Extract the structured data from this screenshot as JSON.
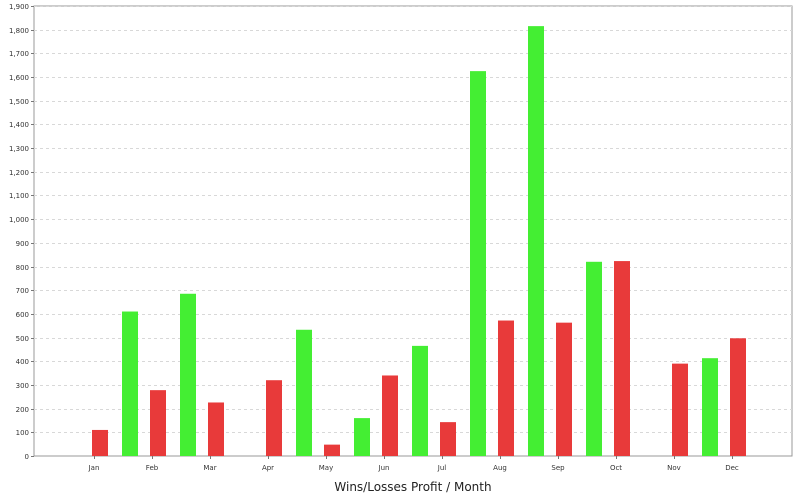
{
  "chart_data": {
    "type": "bar",
    "title": "",
    "xlabel": "Wins/Losses Profit / Month",
    "ylabel": "",
    "categories": [
      "Jan",
      "Feb",
      "Mar",
      "Apr",
      "May",
      "Jun",
      "Jul",
      "Aug",
      "Sep",
      "Oct",
      "Nov",
      "Dec"
    ],
    "series": [
      {
        "name": "",
        "color": "#44ee33",
        "values": [
          0,
          610,
          685,
          0,
          533,
          160,
          465,
          1625,
          1815,
          820,
          0,
          413
        ]
      },
      {
        "name": "",
        "color": "#e83a3a",
        "values": [
          110,
          278,
          226,
          320,
          48,
          340,
          143,
          572,
          563,
          823,
          390,
          497
        ]
      }
    ],
    "ylim": [
      0,
      1900
    ],
    "yticks": [
      0,
      100,
      200,
      300,
      400,
      500,
      600,
      700,
      800,
      900,
      1000,
      1100,
      1200,
      1300,
      1400,
      1500,
      1600,
      1700,
      1800,
      1900
    ],
    "ytick_labels": [
      "0",
      "100",
      "200",
      "300",
      "400",
      "500",
      "600",
      "700",
      "800",
      "900",
      "1,000",
      "1,100",
      "1,200",
      "1,300",
      "1,400",
      "1,500",
      "1,600",
      "1,700",
      "1,800",
      "1,900"
    ],
    "grid": true,
    "legend": "none"
  }
}
